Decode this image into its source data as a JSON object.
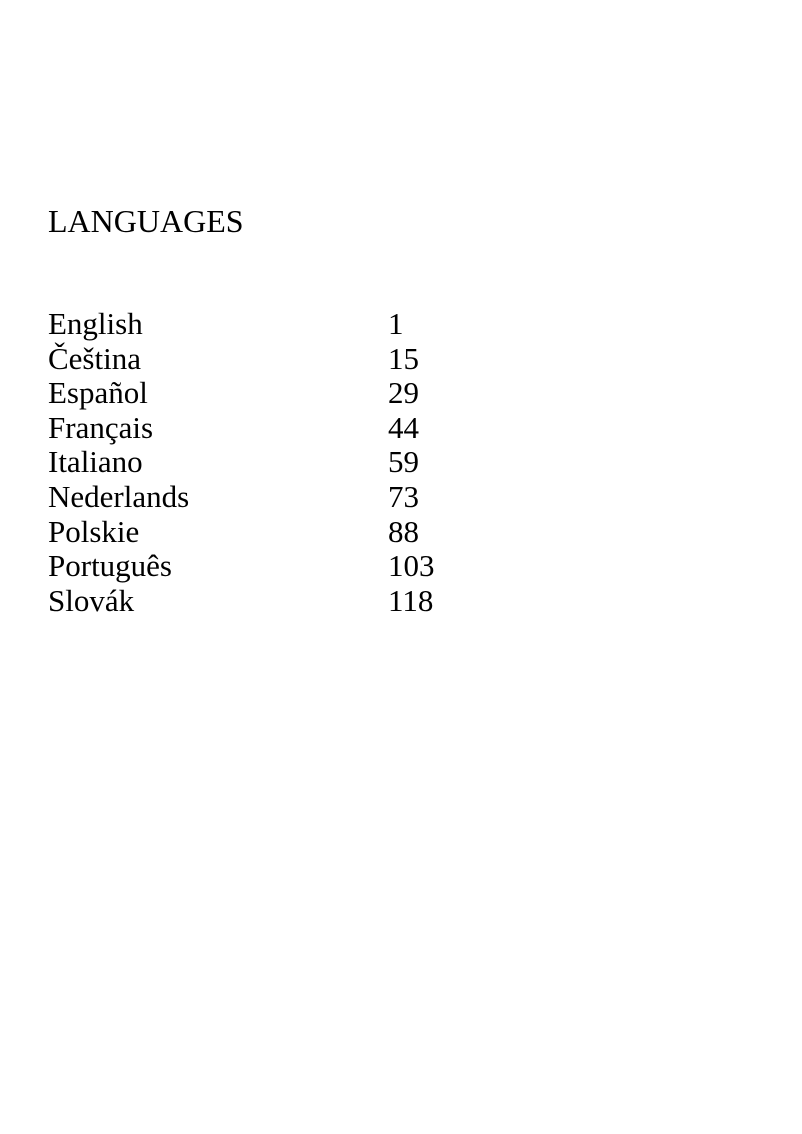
{
  "page": {
    "title": "LANGUAGES"
  },
  "toc": {
    "items": [
      {
        "label": "English",
        "page": "1"
      },
      {
        "label": "Čeština",
        "page": "15"
      },
      {
        "label": "Español",
        "page": "29"
      },
      {
        "label": "Français",
        "page": "44"
      },
      {
        "label": "Italiano",
        "page": "59"
      },
      {
        "label": "Nederlands",
        "page": "73"
      },
      {
        "label": "Polskie",
        "page": "88"
      },
      {
        "label": "Português",
        "page": "103"
      },
      {
        "label": "Slovák",
        "page": "118"
      }
    ]
  },
  "colors": {
    "background": "#ffffff",
    "text": "#000000"
  }
}
